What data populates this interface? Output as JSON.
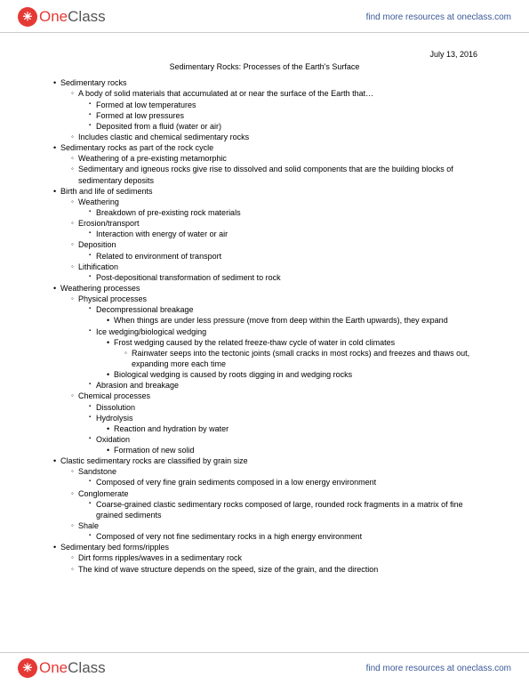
{
  "header": {
    "logo_one": "One",
    "logo_class": "Class",
    "link_text": "find more resources at oneclass.com"
  },
  "doc": {
    "date": "July 13, 2016",
    "title": "Sedimentary Rocks: Processes of the Earth's Surface",
    "outline": [
      {
        "t": "Sedimentary rocks",
        "c": [
          {
            "t": "A body of solid materials that accumulated at or near the surface of the Earth that…",
            "c": [
              {
                "t": "Formed at low temperatures"
              },
              {
                "t": "Formed at low pressures"
              },
              {
                "t": "Deposited from a fluid (water or air)"
              }
            ]
          },
          {
            "t": "Includes clastic and chemical sedimentary rocks"
          }
        ]
      },
      {
        "t": "Sedimentary rocks as part of the rock cycle",
        "c": [
          {
            "t": "Weathering of a pre-existing metamorphic"
          },
          {
            "t": "Sedimentary and igneous rocks give rise to dissolved and solid components that are the building blocks of sedimentary deposits"
          }
        ]
      },
      {
        "t": "Birth and life of sediments",
        "c": [
          {
            "t": "Weathering",
            "c": [
              {
                "t": "Breakdown of pre-existing rock materials"
              }
            ]
          },
          {
            "t": "Erosion/transport",
            "c": [
              {
                "t": "Interaction with energy of water or air"
              }
            ]
          },
          {
            "t": "Deposition",
            "c": [
              {
                "t": "Related to environment of transport"
              }
            ]
          },
          {
            "t": "Lithification",
            "c": [
              {
                "t": "Post-depositional transformation of sediment to rock"
              }
            ]
          }
        ]
      },
      {
        "t": "Weathering processes",
        "c": [
          {
            "t": "Physical processes",
            "c": [
              {
                "t": "Decompressional breakage",
                "c": [
                  {
                    "t": "When things are under less pressure (move from deep within the Earth upwards), they expand"
                  }
                ]
              },
              {
                "t": "Ice wedging/biological wedging",
                "c": [
                  {
                    "t": "Frost wedging caused by the related freeze-thaw cycle of water in cold climates",
                    "c": [
                      {
                        "t": "Rainwater seeps into the tectonic joints (small cracks in most rocks) and freezes and thaws out, expanding more each time"
                      }
                    ]
                  },
                  {
                    "t": "Biological wedging is caused by roots digging in and wedging rocks"
                  }
                ]
              },
              {
                "t": "Abrasion and breakage"
              }
            ]
          },
          {
            "t": "Chemical processes",
            "c": [
              {
                "t": "Dissolution"
              },
              {
                "t": "Hydrolysis",
                "c": [
                  {
                    "t": "Reaction and hydration by water"
                  }
                ]
              },
              {
                "t": "Oxidation",
                "c": [
                  {
                    "t": "Formation of new solid"
                  }
                ]
              }
            ]
          }
        ]
      },
      {
        "t": "Clastic sedimentary rocks are classified by grain size",
        "c": [
          {
            "t": "Sandstone",
            "c": [
              {
                "t": "Composed of very fine grain sediments composed in a low energy environment"
              }
            ]
          },
          {
            "t": "Conglomerate",
            "c": [
              {
                "t": "Coarse-grained clastic sedimentary rocks composed of large, rounded rock fragments in a matrix of fine grained sediments"
              }
            ]
          },
          {
            "t": "Shale",
            "c": [
              {
                "t": "Composed of very not fine sedimentary rocks in a high energy environment"
              }
            ]
          }
        ]
      },
      {
        "t": "Sedimentary bed forms/ripples",
        "c": [
          {
            "t": "Dirt forms ripples/waves in a sedimentary rock"
          },
          {
            "t": "The kind of wave structure depends on the speed, size of the grain, and the direction"
          }
        ]
      }
    ]
  },
  "footer": {
    "logo_one": "One",
    "logo_class": "Class",
    "link_text": "find more resources at oneclass.com"
  }
}
